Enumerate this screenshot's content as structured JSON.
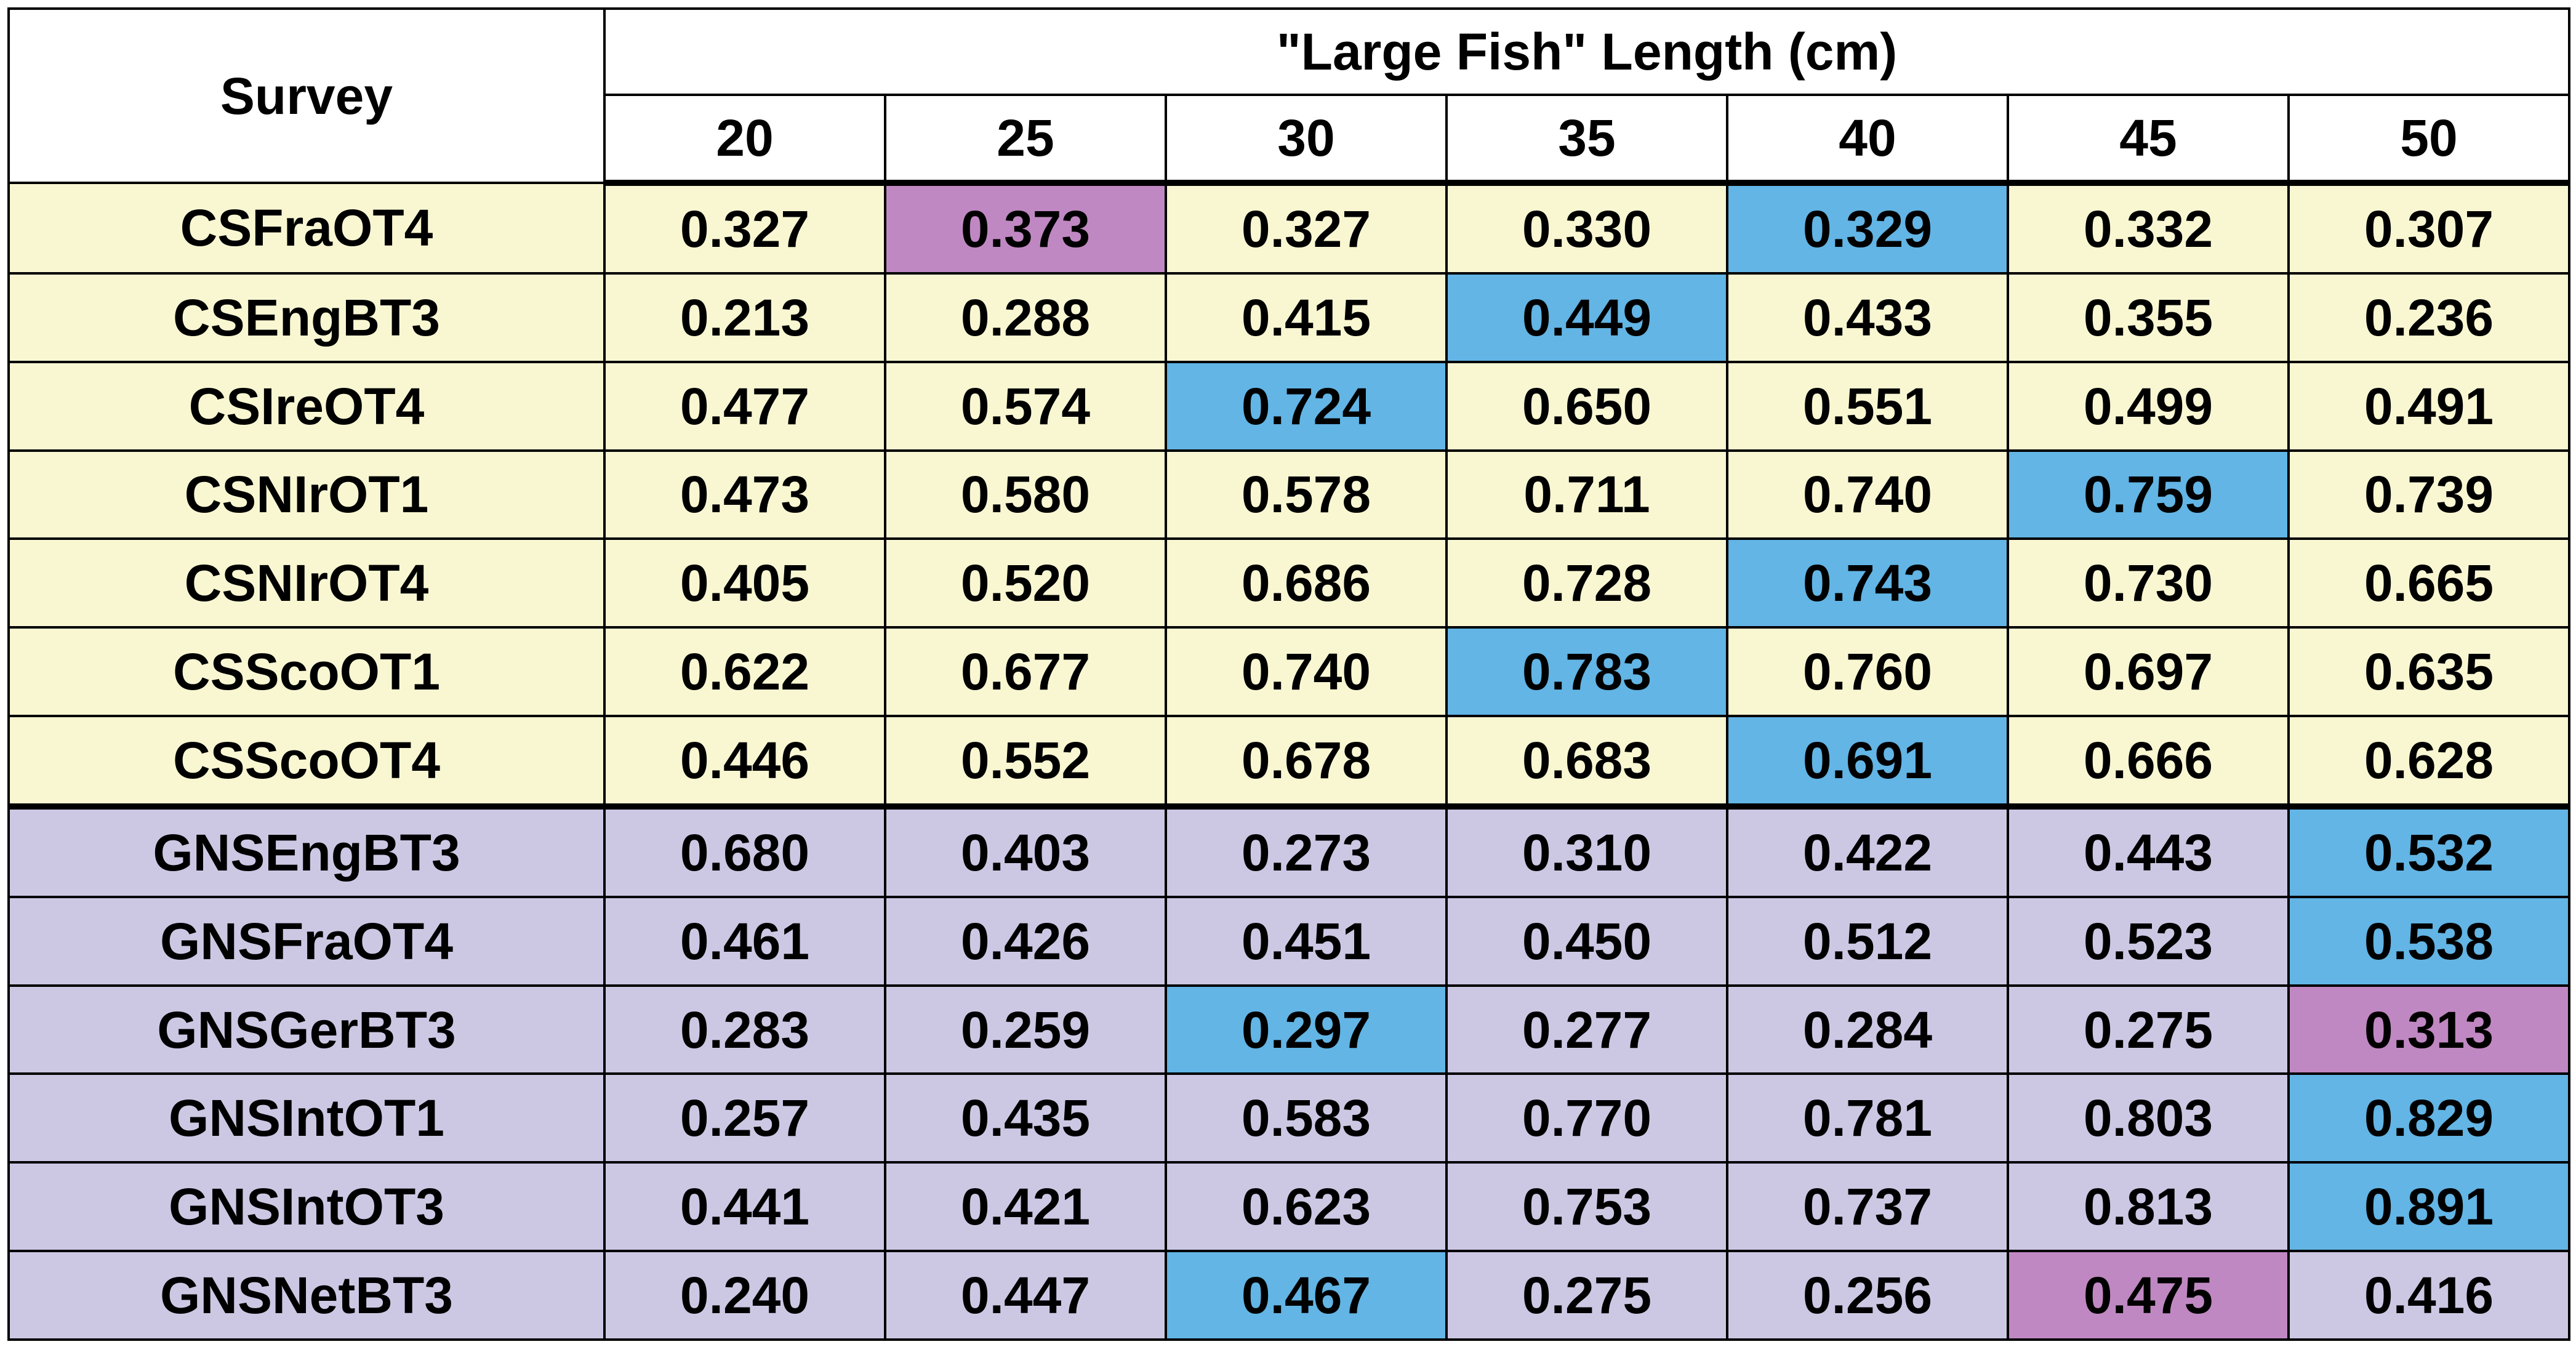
{
  "table": {
    "survey_header": "Survey",
    "length_header": "\"Large Fish\" Length (cm)",
    "lengths": [
      "20",
      "25",
      "30",
      "35",
      "40",
      "45",
      "50"
    ],
    "colors": {
      "cs_group_bg": "#f9f7d2",
      "gns_group_bg": "#ccc8e4",
      "max_highlight": "#62b5e5",
      "secondary_highlight": "#c088c2"
    },
    "rows": [
      {
        "survey": "CSFraOT4",
        "group": "cs",
        "values": [
          "0.327",
          "0.373",
          "0.327",
          "0.330",
          "0.329",
          "0.332",
          "0.307"
        ],
        "highlights": [
          "",
          "secondary",
          "",
          "",
          "max",
          "",
          ""
        ]
      },
      {
        "survey": "CSEngBT3",
        "group": "cs",
        "values": [
          "0.213",
          "0.288",
          "0.415",
          "0.449",
          "0.433",
          "0.355",
          "0.236"
        ],
        "highlights": [
          "",
          "",
          "",
          "max",
          "",
          "",
          ""
        ]
      },
      {
        "survey": "CSIreOT4",
        "group": "cs",
        "values": [
          "0.477",
          "0.574",
          "0.724",
          "0.650",
          "0.551",
          "0.499",
          "0.491"
        ],
        "highlights": [
          "",
          "",
          "max",
          "",
          "",
          "",
          ""
        ]
      },
      {
        "survey": "CSNIrOT1",
        "group": "cs",
        "values": [
          "0.473",
          "0.580",
          "0.578",
          "0.711",
          "0.740",
          "0.759",
          "0.739"
        ],
        "highlights": [
          "",
          "",
          "",
          "",
          "",
          "max",
          ""
        ]
      },
      {
        "survey": "CSNIrOT4",
        "group": "cs",
        "values": [
          "0.405",
          "0.520",
          "0.686",
          "0.728",
          "0.743",
          "0.730",
          "0.665"
        ],
        "highlights": [
          "",
          "",
          "",
          "",
          "max",
          "",
          ""
        ]
      },
      {
        "survey": "CSScoOT1",
        "group": "cs",
        "values": [
          "0.622",
          "0.677",
          "0.740",
          "0.783",
          "0.760",
          "0.697",
          "0.635"
        ],
        "highlights": [
          "",
          "",
          "",
          "max",
          "",
          "",
          ""
        ]
      },
      {
        "survey": "CSScoOT4",
        "group": "cs",
        "values": [
          "0.446",
          "0.552",
          "0.678",
          "0.683",
          "0.691",
          "0.666",
          "0.628"
        ],
        "highlights": [
          "",
          "",
          "",
          "",
          "max",
          "",
          ""
        ],
        "group_end": true
      },
      {
        "survey": "GNSEngBT3",
        "group": "gns",
        "values": [
          "0.680",
          "0.403",
          "0.273",
          "0.310",
          "0.422",
          "0.443",
          "0.532"
        ],
        "highlights": [
          "",
          "",
          "",
          "",
          "",
          "",
          "max"
        ]
      },
      {
        "survey": "GNSFraOT4",
        "group": "gns",
        "values": [
          "0.461",
          "0.426",
          "0.451",
          "0.450",
          "0.512",
          "0.523",
          "0.538"
        ],
        "highlights": [
          "",
          "",
          "",
          "",
          "",
          "",
          "max"
        ]
      },
      {
        "survey": "GNSGerBT3",
        "group": "gns",
        "values": [
          "0.283",
          "0.259",
          "0.297",
          "0.277",
          "0.284",
          "0.275",
          "0.313"
        ],
        "highlights": [
          "",
          "",
          "max",
          "",
          "",
          "",
          "secondary"
        ]
      },
      {
        "survey": "GNSIntOT1",
        "group": "gns",
        "values": [
          "0.257",
          "0.435",
          "0.583",
          "0.770",
          "0.781",
          "0.803",
          "0.829"
        ],
        "highlights": [
          "",
          "",
          "",
          "",
          "",
          "",
          "max"
        ]
      },
      {
        "survey": "GNSIntOT3",
        "group": "gns",
        "values": [
          "0.441",
          "0.421",
          "0.623",
          "0.753",
          "0.737",
          "0.813",
          "0.891"
        ],
        "highlights": [
          "",
          "",
          "",
          "",
          "",
          "",
          "max"
        ]
      },
      {
        "survey": "GNSNetBT3",
        "group": "gns",
        "values": [
          "0.240",
          "0.447",
          "0.467",
          "0.275",
          "0.256",
          "0.475",
          "0.416"
        ],
        "highlights": [
          "",
          "",
          "max",
          "",
          "",
          "secondary",
          ""
        ]
      }
    ]
  }
}
